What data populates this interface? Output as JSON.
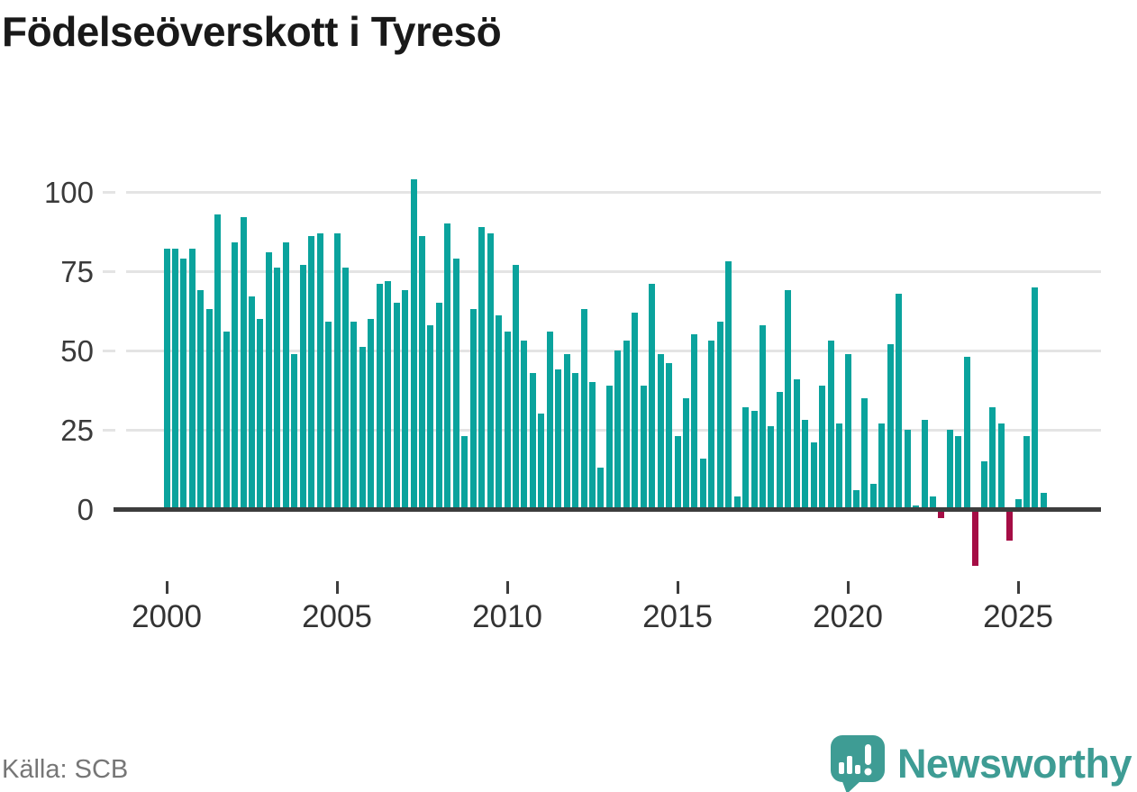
{
  "title": "Födelseöverskott i Tyresö",
  "source": "Källa: SCB",
  "branding": {
    "name": "Newsworthy",
    "color": "#3e9c94"
  },
  "chart_data": {
    "type": "bar",
    "title": "Födelseöverskott i Tyresö",
    "xlabel": "",
    "ylabel": "",
    "period": "quarterly",
    "x": [
      "2000 Q1",
      "2000 Q2",
      "2000 Q3",
      "2000 Q4",
      "2001 Q1",
      "2001 Q2",
      "2001 Q3",
      "2001 Q4",
      "2002 Q1",
      "2002 Q2",
      "2002 Q3",
      "2002 Q4",
      "2003 Q1",
      "2003 Q2",
      "2003 Q3",
      "2003 Q4",
      "2004 Q1",
      "2004 Q2",
      "2004 Q3",
      "2004 Q4",
      "2005 Q1",
      "2005 Q2",
      "2005 Q3",
      "2005 Q4",
      "2006 Q1",
      "2006 Q2",
      "2006 Q3",
      "2006 Q4",
      "2007 Q1",
      "2007 Q2",
      "2007 Q3",
      "2007 Q4",
      "2008 Q1",
      "2008 Q2",
      "2008 Q3",
      "2008 Q4",
      "2009 Q1",
      "2009 Q2",
      "2009 Q3",
      "2009 Q4",
      "2010 Q1",
      "2010 Q2",
      "2010 Q3",
      "2010 Q4",
      "2011 Q1",
      "2011 Q2",
      "2011 Q3",
      "2011 Q4",
      "2012 Q1",
      "2012 Q2",
      "2012 Q3",
      "2012 Q4",
      "2013 Q1",
      "2013 Q2",
      "2013 Q3",
      "2013 Q4",
      "2014 Q1",
      "2014 Q2",
      "2014 Q3",
      "2014 Q4",
      "2015 Q1",
      "2015 Q2",
      "2015 Q3",
      "2015 Q4",
      "2016 Q1",
      "2016 Q2",
      "2016 Q3",
      "2016 Q4",
      "2017 Q1",
      "2017 Q2",
      "2017 Q3",
      "2017 Q4",
      "2018 Q1",
      "2018 Q2",
      "2018 Q3",
      "2018 Q4",
      "2019 Q1",
      "2019 Q2",
      "2019 Q3",
      "2019 Q4",
      "2020 Q1",
      "2020 Q2",
      "2020 Q3",
      "2020 Q4",
      "2021 Q1",
      "2021 Q2",
      "2021 Q3",
      "2021 Q4",
      "2022 Q1",
      "2022 Q2",
      "2022 Q3",
      "2022 Q4",
      "2023 Q1",
      "2023 Q2",
      "2023 Q3",
      "2023 Q4",
      "2024 Q1",
      "2024 Q2",
      "2024 Q3",
      "2024 Q4",
      "2025 Q1",
      "2025 Q2",
      "2025 Q3",
      "2025 Q4"
    ],
    "series": [
      {
        "name": "Födelseöverskott",
        "values": [
          82,
          82,
          79,
          82,
          69,
          63,
          93,
          56,
          84,
          92,
          67,
          60,
          81,
          76,
          84,
          49,
          77,
          86,
          87,
          59,
          87,
          76,
          59,
          51,
          60,
          71,
          72,
          65,
          69,
          104,
          86,
          58,
          65,
          90,
          79,
          23,
          63,
          89,
          87,
          61,
          56,
          77,
          53,
          43,
          30,
          56,
          44,
          49,
          43,
          63,
          40,
          13,
          39,
          50,
          53,
          62,
          39,
          71,
          49,
          46,
          23,
          35,
          55,
          16,
          53,
          59,
          78,
          4,
          32,
          31,
          58,
          26,
          37,
          69,
          41,
          28,
          21,
          39,
          53,
          27,
          49,
          6,
          35,
          8,
          27,
          52,
          68,
          25,
          1,
          28,
          4,
          -2,
          25,
          23,
          48,
          -17,
          15,
          32,
          27,
          -9,
          3,
          23,
          70,
          5
        ]
      }
    ],
    "x_tick_labels": [
      "2000",
      "2005",
      "2010",
      "2015",
      "2020",
      "2025"
    ],
    "y_ticks": [
      0,
      25,
      50,
      75,
      100
    ],
    "ylim": [
      -20,
      107
    ],
    "grid": "horizontal",
    "legend": "none",
    "colors": {
      "positive": "#0aa39d",
      "negative": "#a50d45",
      "gridline": "#e4e4e4",
      "axis": "#3d3d3d"
    }
  }
}
